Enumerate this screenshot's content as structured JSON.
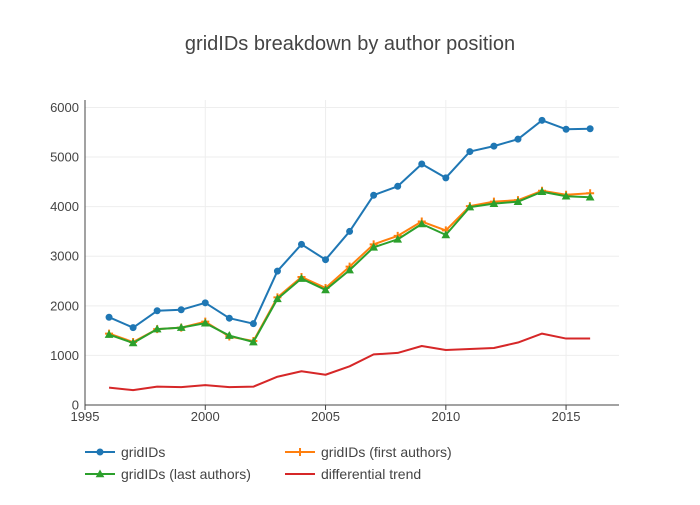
{
  "chart_data": {
    "type": "line",
    "title": "gridIDs breakdown by author position",
    "xlabel": "",
    "ylabel": "",
    "xlim": [
      1995,
      2017.2
    ],
    "ylim": [
      0,
      6150
    ],
    "xticks": [
      1995,
      2000,
      2005,
      2010,
      2015
    ],
    "yticks": [
      0,
      1000,
      2000,
      3000,
      4000,
      5000,
      6000
    ],
    "grid": true,
    "legend_position": "bottom",
    "x": [
      1996,
      1997,
      1998,
      1999,
      2000,
      2001,
      2002,
      2003,
      2004,
      2005,
      2006,
      2007,
      2008,
      2009,
      2010,
      2011,
      2012,
      2013,
      2014,
      2015,
      2016
    ],
    "series": [
      {
        "name": "gridIDs",
        "color": "#1f77b4",
        "marker": "circle",
        "values": [
          1770,
          1560,
          1900,
          1920,
          2060,
          1750,
          1640,
          2700,
          3240,
          2930,
          3500,
          4230,
          4410,
          4860,
          4580,
          5110,
          5220,
          5360,
          5740,
          5560,
          5570
        ]
      },
      {
        "name": "gridIDs (first authors)",
        "color": "#ff7f0e",
        "marker": "cross",
        "values": [
          1440,
          1270,
          1530,
          1560,
          1680,
          1380,
          1290,
          2170,
          2580,
          2360,
          2790,
          3240,
          3410,
          3700,
          3520,
          4010,
          4100,
          4130,
          4320,
          4240,
          4270
        ]
      },
      {
        "name": "gridIDs (last authors)",
        "color": "#2ca02c",
        "marker": "triangle",
        "values": [
          1420,
          1250,
          1530,
          1560,
          1650,
          1400,
          1270,
          2140,
          2550,
          2320,
          2720,
          3180,
          3340,
          3650,
          3430,
          3990,
          4060,
          4100,
          4300,
          4210,
          4190
        ]
      },
      {
        "name": "differential trend",
        "color": "#d62728",
        "marker": "none",
        "values": [
          350,
          300,
          370,
          360,
          400,
          360,
          370,
          570,
          680,
          610,
          780,
          1020,
          1050,
          1190,
          1110,
          1130,
          1150,
          1260,
          1440,
          1340,
          1340
        ]
      }
    ]
  }
}
